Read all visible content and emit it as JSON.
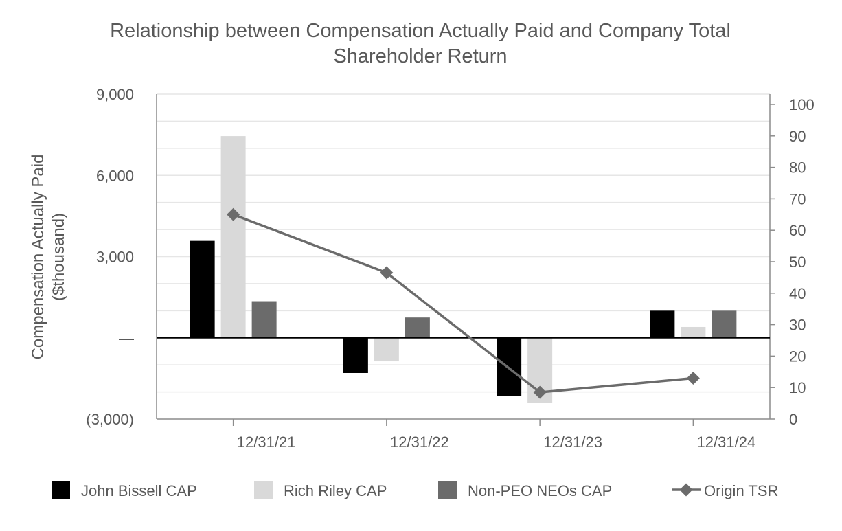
{
  "chart_data": {
    "type": "bar",
    "title_lines": [
      "Relationship between Compensation Actually Paid and Company Total",
      "Shareholder Return"
    ],
    "ylabel_lines": [
      "Compensation Actually Paid",
      "($thousand)"
    ],
    "categories": [
      "12/31/21",
      "12/31/22",
      "12/31/23",
      "12/31/24"
    ],
    "ylim": [
      -3000,
      9000
    ],
    "y2lim": [
      0,
      100
    ],
    "yticks": [
      {
        "value": 9000,
        "label": "9,000"
      },
      {
        "value": 6000,
        "label": "6,000"
      },
      {
        "value": 3000,
        "label": "3,000"
      },
      {
        "value": 0,
        "label": "—"
      },
      {
        "value": -3000,
        "label": "(3,000)"
      }
    ],
    "y2ticks": [
      {
        "value": 100,
        "label": "100"
      },
      {
        "value": 90,
        "label": "90"
      },
      {
        "value": 80,
        "label": "80"
      },
      {
        "value": 70,
        "label": "70"
      },
      {
        "value": 60,
        "label": "60"
      },
      {
        "value": 50,
        "label": "50"
      },
      {
        "value": 40,
        "label": "40"
      },
      {
        "value": 30,
        "label": "30"
      },
      {
        "value": 20,
        "label": "20"
      },
      {
        "value": 10,
        "label": "10"
      },
      {
        "value": 0,
        "label": "0"
      }
    ],
    "series": [
      {
        "name": "John Bissell CAP",
        "kind": "bar",
        "axis": "left",
        "color": "#000000",
        "values": [
          3580,
          -1300,
          -2150,
          1000
        ]
      },
      {
        "name": "Rich Riley CAP",
        "kind": "bar",
        "axis": "left",
        "color": "#d9d9d9",
        "values": [
          7450,
          -870,
          -2400,
          400
        ]
      },
      {
        "name": "Non-PEO NEOs CAP",
        "kind": "bar",
        "axis": "left",
        "color": "#6b6b6b",
        "values": [
          1350,
          750,
          40,
          1000
        ]
      },
      {
        "name": "Origin TSR",
        "kind": "line",
        "axis": "right",
        "color": "#6b6b6b",
        "values": [
          65,
          46.5,
          8.5,
          13
        ]
      }
    ],
    "legend_position": "bottom",
    "grid": true
  }
}
